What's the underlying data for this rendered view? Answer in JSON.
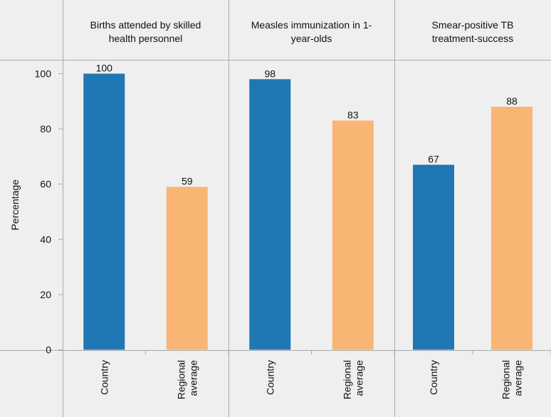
{
  "chart_data": {
    "type": "bar",
    "ylabel": "Percentage",
    "ylim": [
      0,
      100
    ],
    "yticks": [
      0,
      20,
      40,
      60,
      80,
      100
    ],
    "categories": [
      "Country",
      "Regional average"
    ],
    "category_labels": [
      [
        "Country"
      ],
      [
        "Regional",
        "average"
      ]
    ],
    "colors": {
      "Country": "#1f77b4",
      "Regional average": "#f9b574",
      "panel_background": "#efefef",
      "grid_line": "#aaaaaa"
    },
    "panels": [
      {
        "title_lines": [
          "Births attended by skilled",
          "health personnel"
        ],
        "values": [
          100,
          59
        ]
      },
      {
        "title_lines": [
          "Measles immunization in 1-",
          "year-olds"
        ],
        "values": [
          98,
          83
        ]
      },
      {
        "title_lines": [
          "Smear-positive TB",
          "treatment-success"
        ],
        "values": [
          67,
          88
        ]
      }
    ]
  }
}
